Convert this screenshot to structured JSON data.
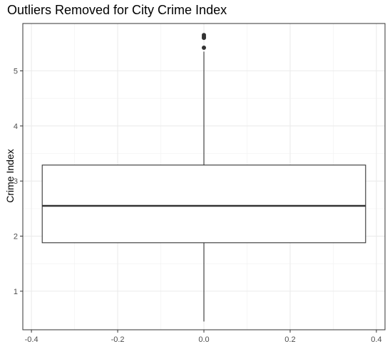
{
  "chart_data": {
    "type": "box",
    "title": "Outliers Removed for City Crime Index",
    "xlabel": "",
    "ylabel": "Crime Index",
    "xlim": [
      -0.42,
      0.42
    ],
    "ylim": [
      0.3,
      5.86
    ],
    "x_ticks": [
      -0.4,
      -0.2,
      0.0,
      0.2,
      0.4
    ],
    "x_tick_labels": [
      "-0.4",
      "-0.2",
      "0.0",
      "0.2",
      "0.4"
    ],
    "y_ticks": [
      1,
      2,
      3,
      4,
      5
    ],
    "y_tick_labels": [
      "1",
      "2",
      "3",
      "4",
      "5"
    ],
    "grid": true,
    "box": {
      "x_left": -0.375,
      "x_right": 0.375,
      "x_center": 0.0,
      "q1": 1.88,
      "median": 2.55,
      "q3": 3.29,
      "whisker_low": 0.45,
      "whisker_high": 5.35
    },
    "outliers": [
      5.65,
      5.62,
      5.6,
      5.42
    ]
  },
  "colors": {
    "panel_border": "#333333",
    "grid_major": "#ebebeb",
    "grid_minor": "#f4f4f4",
    "box_line": "#333333",
    "text": "#4d4d4d",
    "outlier": "#333333"
  }
}
